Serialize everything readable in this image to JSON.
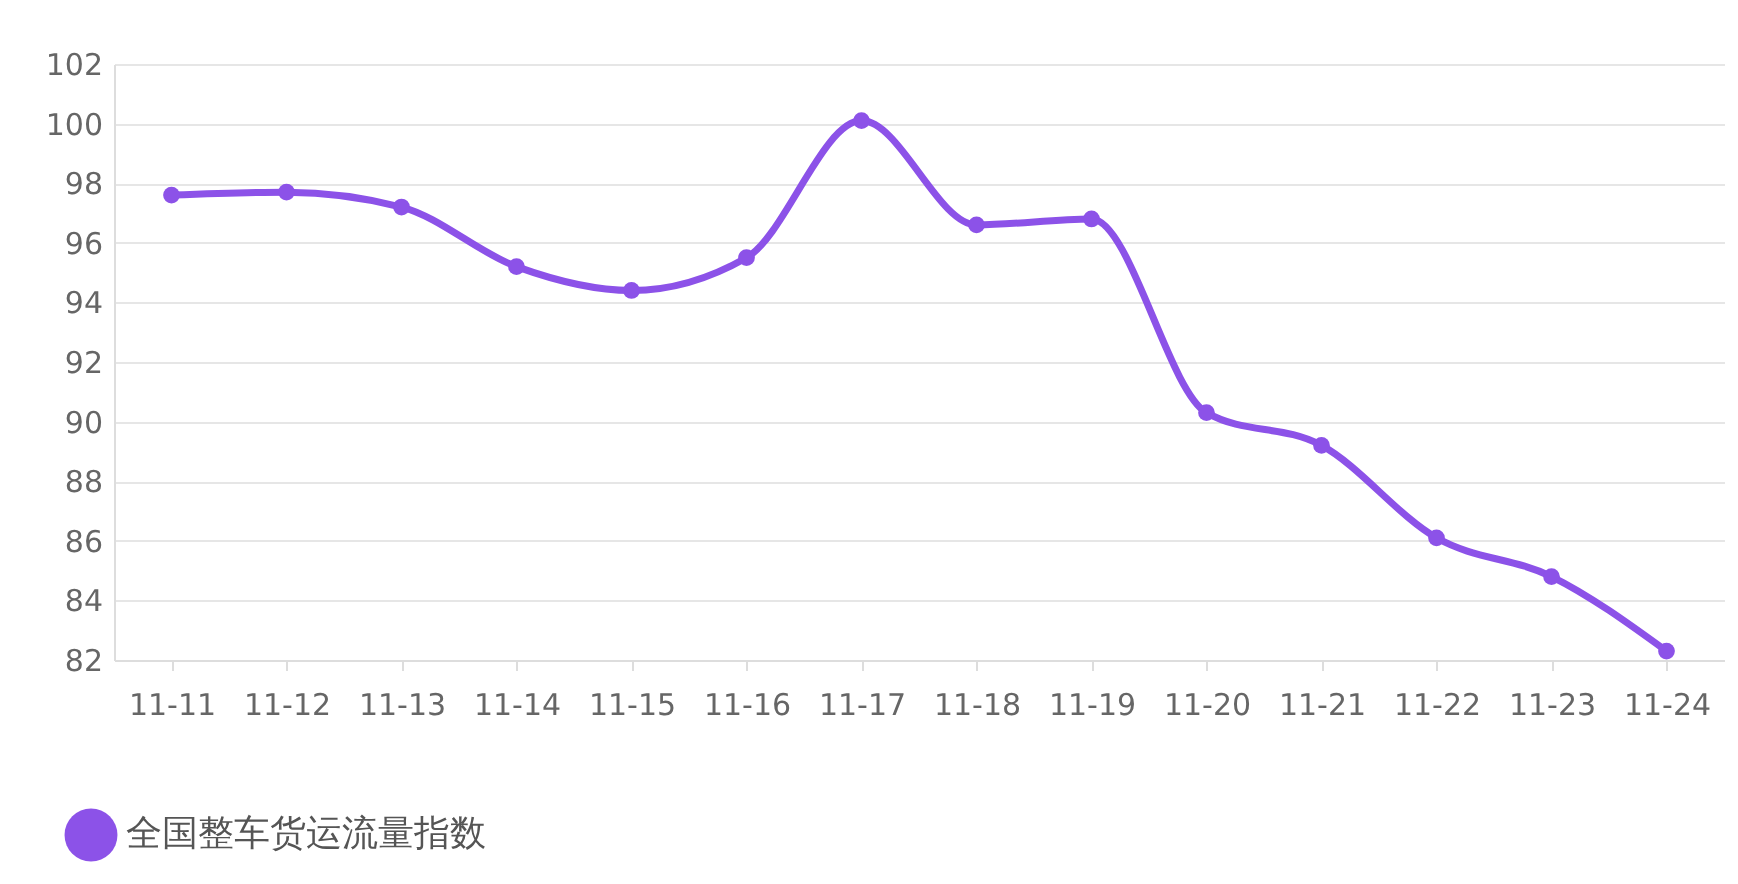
{
  "chart_data": {
    "type": "line",
    "categories": [
      "11-11",
      "11-12",
      "11-13",
      "11-14",
      "11-15",
      "11-16",
      "11-17",
      "11-18",
      "11-19",
      "11-20",
      "11-21",
      "11-22",
      "11-23",
      "11-24"
    ],
    "series": [
      {
        "name": "全国整车货运流量指数",
        "color": "#8c52e8",
        "values": [
          97.6,
          97.7,
          97.2,
          95.2,
          94.4,
          95.5,
          100.1,
          96.6,
          96.8,
          90.3,
          89.2,
          86.1,
          84.8,
          82.3
        ]
      }
    ],
    "ylim": [
      82,
      102
    ],
    "yticks": [
      82,
      84,
      86,
      88,
      90,
      92,
      94,
      96,
      98,
      100,
      102
    ],
    "grid": "y",
    "legend": "bottom left",
    "marker": "circle",
    "line_style": "solid"
  }
}
